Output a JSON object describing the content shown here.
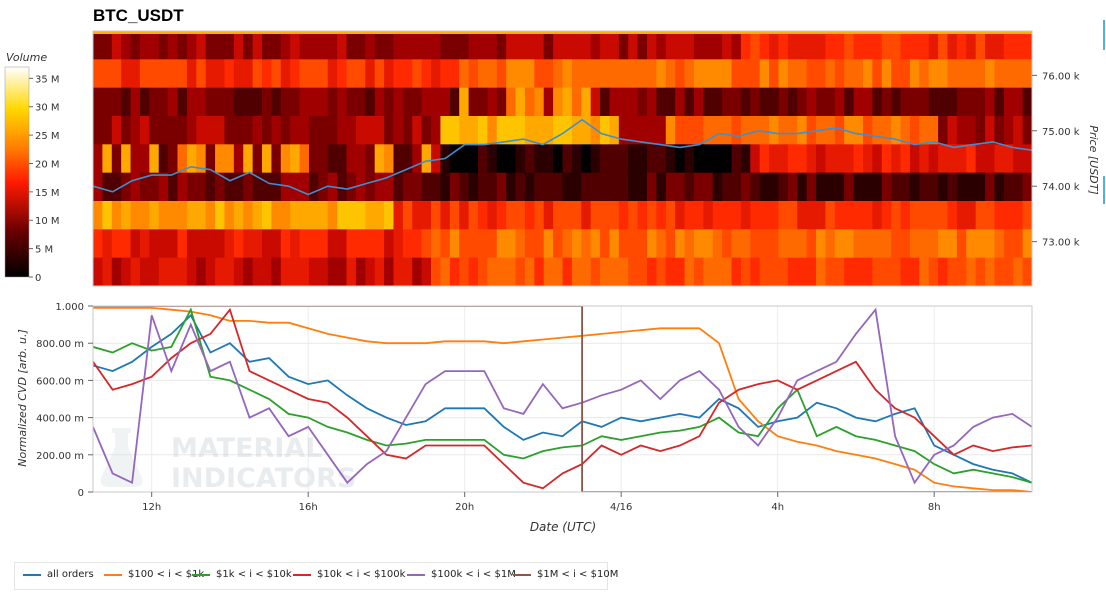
{
  "title": "BTC_USDT",
  "colors": {
    "all_orders": "#1f77b4",
    "r100_1k": "#ff7f0e",
    "r1k_10k": "#2ca02c",
    "r10k_100k": "#d62728",
    "r100k_1m": "#9467bd",
    "r1m_10m": "#8c564b",
    "price_line": "#3d8fd1"
  },
  "watermark": {
    "line1": "MATERIAL",
    "line2": "INDICATORS"
  },
  "chart_data": [
    {
      "type": "heatmap",
      "title": "BTC_USDT",
      "ylabel": "Price [USDT]",
      "ylim": [
        72200,
        76800
      ],
      "yticks": [
        {
          "value": 73000,
          "label": "73.00 k"
        },
        {
          "value": 74000,
          "label": "74.00 k"
        },
        {
          "value": 75000,
          "label": "75.00 k"
        },
        {
          "value": 76000,
          "label": "76.00 k"
        }
      ],
      "xlim": [
        10.5,
        34.5
      ],
      "colorbar": {
        "label": "Volume",
        "min": 0,
        "max": 37000000,
        "ticks": [
          {
            "value": 0,
            "label": "0"
          },
          {
            "value": 5000000,
            "label": "5 M"
          },
          {
            "value": 10000000,
            "label": "10 M"
          },
          {
            "value": 15000000,
            "label": "15 M"
          },
          {
            "value": 20000000,
            "label": "20 M"
          },
          {
            "value": 25000000,
            "label": "25 M"
          },
          {
            "value": 30000000,
            "label": "30 M"
          },
          {
            "value": 35000000,
            "label": "35 M"
          }
        ]
      },
      "price_series": {
        "x": [
          10.5,
          11.0,
          11.5,
          12.0,
          12.5,
          13.0,
          13.5,
          14.0,
          14.5,
          15.0,
          15.5,
          16.0,
          16.5,
          17.0,
          17.5,
          18.0,
          18.5,
          19.0,
          19.5,
          20.0,
          20.5,
          21.0,
          21.5,
          22.0,
          22.5,
          23.0,
          23.5,
          24.0,
          24.5,
          25.0,
          25.5,
          26.0,
          26.5,
          27.0,
          27.5,
          28.0,
          28.5,
          29.0,
          29.5,
          30.0,
          30.5,
          31.0,
          31.5,
          32.0,
          32.5,
          33.0,
          33.5,
          34.0,
          34.5
        ],
        "y": [
          74000,
          73900,
          74100,
          74200,
          74200,
          74350,
          74300,
          74100,
          74250,
          74050,
          74000,
          73850,
          74000,
          73950,
          74050,
          74150,
          74300,
          74450,
          74500,
          74750,
          74750,
          74800,
          74850,
          74750,
          74950,
          75200,
          74950,
          74850,
          74800,
          74750,
          74700,
          74750,
          74950,
          74900,
          75000,
          74950,
          74950,
          75000,
          75050,
          74950,
          74900,
          74850,
          74750,
          74800,
          74700,
          74750,
          74800,
          74700,
          74650
        ]
      }
    },
    {
      "type": "line",
      "xlabel": "Date (UTC)",
      "ylabel": "Normalized CVD [arb. u.]",
      "ylim": [
        0,
        1
      ],
      "xlim": [
        10.5,
        34.5
      ],
      "yticks": [
        {
          "value": 0,
          "label": "0"
        },
        {
          "value": 0.2,
          "label": "200.00 m"
        },
        {
          "value": 0.4,
          "label": "400.00 m"
        },
        {
          "value": 0.6,
          "label": "600.00 m"
        },
        {
          "value": 0.8,
          "label": "800.00 m"
        },
        {
          "value": 1,
          "label": "1.000"
        }
      ],
      "xticks": [
        {
          "value": 12,
          "label": "12h"
        },
        {
          "value": 16,
          "label": "16h"
        },
        {
          "value": 20,
          "label": "20h"
        },
        {
          "value": 24,
          "label": "4/16"
        },
        {
          "value": 28,
          "label": "4h"
        },
        {
          "value": 32,
          "label": "8h"
        }
      ],
      "x": [
        10.5,
        11.0,
        11.5,
        12.0,
        12.5,
        13.0,
        13.5,
        14.0,
        14.5,
        15.0,
        15.5,
        16.0,
        16.5,
        17.0,
        17.5,
        18.0,
        18.5,
        19.0,
        19.5,
        20.0,
        20.5,
        21.0,
        21.5,
        22.0,
        22.5,
        23.0,
        23.5,
        24.0,
        24.5,
        25.0,
        25.5,
        26.0,
        26.5,
        27.0,
        27.5,
        28.0,
        28.5,
        29.0,
        29.5,
        30.0,
        30.5,
        31.0,
        31.5,
        32.0,
        32.5,
        33.0,
        33.5,
        34.0,
        34.5
      ],
      "series": [
        {
          "name": "all orders",
          "color_key": "all_orders",
          "values": [
            0.68,
            0.65,
            0.7,
            0.78,
            0.85,
            0.95,
            0.75,
            0.8,
            0.7,
            0.72,
            0.62,
            0.58,
            0.6,
            0.52,
            0.45,
            0.4,
            0.36,
            0.38,
            0.45,
            0.45,
            0.45,
            0.35,
            0.28,
            0.32,
            0.3,
            0.38,
            0.35,
            0.4,
            0.38,
            0.4,
            0.42,
            0.4,
            0.5,
            0.45,
            0.35,
            0.38,
            0.4,
            0.48,
            0.45,
            0.4,
            0.38,
            0.42,
            0.45,
            0.25,
            0.2,
            0.15,
            0.12,
            0.1,
            0.05
          ]
        },
        {
          "name": "$100 < i < $1k",
          "color_key": "r100_1k",
          "values": [
            0.99,
            0.99,
            0.99,
            0.99,
            0.98,
            0.97,
            0.95,
            0.92,
            0.92,
            0.91,
            0.91,
            0.88,
            0.85,
            0.83,
            0.81,
            0.8,
            0.8,
            0.8,
            0.81,
            0.81,
            0.81,
            0.8,
            0.81,
            0.82,
            0.83,
            0.84,
            0.85,
            0.86,
            0.87,
            0.88,
            0.88,
            0.88,
            0.8,
            0.5,
            0.38,
            0.3,
            0.27,
            0.25,
            0.22,
            0.2,
            0.18,
            0.15,
            0.12,
            0.05,
            0.03,
            0.02,
            0.01,
            0.01,
            0.0
          ]
        },
        {
          "name": "$1k < i < $10k",
          "color_key": "r1k_10k",
          "values": [
            0.78,
            0.75,
            0.8,
            0.76,
            0.78,
            0.98,
            0.62,
            0.6,
            0.55,
            0.5,
            0.42,
            0.4,
            0.35,
            0.32,
            0.28,
            0.25,
            0.26,
            0.28,
            0.28,
            0.28,
            0.28,
            0.2,
            0.18,
            0.22,
            0.24,
            0.25,
            0.3,
            0.28,
            0.3,
            0.32,
            0.33,
            0.35,
            0.4,
            0.32,
            0.3,
            0.45,
            0.55,
            0.3,
            0.35,
            0.3,
            0.28,
            0.25,
            0.22,
            0.15,
            0.1,
            0.12,
            0.1,
            0.08,
            0.05
          ]
        },
        {
          "name": "$10k < i < $100k",
          "color_key": "r10k_100k",
          "values": [
            0.7,
            0.55,
            0.58,
            0.62,
            0.72,
            0.8,
            0.85,
            0.98,
            0.65,
            0.6,
            0.55,
            0.5,
            0.48,
            0.4,
            0.3,
            0.2,
            0.18,
            0.25,
            0.25,
            0.25,
            0.25,
            0.15,
            0.05,
            0.02,
            0.1,
            0.15,
            0.25,
            0.2,
            0.25,
            0.22,
            0.25,
            0.3,
            0.48,
            0.55,
            0.58,
            0.6,
            0.55,
            0.6,
            0.65,
            0.7,
            0.55,
            0.45,
            0.4,
            0.3,
            0.2,
            0.25,
            0.22,
            0.24,
            0.25
          ]
        },
        {
          "name": "$100k < i < $1M",
          "color_key": "r100k_1m",
          "values": [
            0.35,
            0.1,
            0.05,
            0.95,
            0.65,
            0.9,
            0.65,
            0.7,
            0.4,
            0.45,
            0.3,
            0.35,
            0.2,
            0.05,
            0.15,
            0.22,
            0.4,
            0.58,
            0.65,
            0.65,
            0.65,
            0.45,
            0.42,
            0.58,
            0.45,
            0.48,
            0.52,
            0.55,
            0.6,
            0.5,
            0.6,
            0.65,
            0.55,
            0.35,
            0.25,
            0.4,
            0.6,
            0.65,
            0.7,
            0.85,
            0.98,
            0.3,
            0.05,
            0.2,
            0.25,
            0.35,
            0.4,
            0.42,
            0.35
          ]
        },
        {
          "name": "$1M < i < $10M",
          "color_key": "r1m_10m",
          "values": [
            1,
            1,
            1,
            1,
            1,
            1,
            1,
            1,
            1,
            1,
            1,
            1,
            1,
            1,
            1,
            1,
            1,
            1,
            1,
            1,
            1,
            1,
            1,
            1,
            1,
            0,
            0,
            0,
            0,
            0,
            0,
            0,
            0,
            0,
            0,
            0,
            0,
            0,
            0,
            0,
            0,
            0,
            0,
            0,
            0,
            0,
            0,
            0,
            0
          ]
        }
      ]
    }
  ]
}
